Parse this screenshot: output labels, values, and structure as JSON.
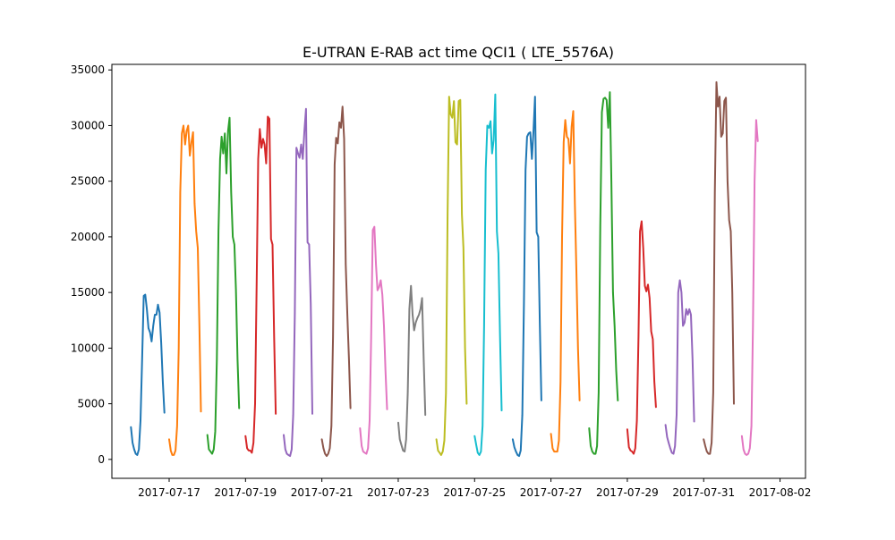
{
  "chart_data": {
    "type": "line",
    "title": "E-UTRAN E-RAB act time QCI1 ( LTE_5576A)",
    "xlabel": "",
    "ylabel": "",
    "x_start_date": "2017-07-16",
    "x_axis_type": "date",
    "xlim": [
      "2017-07-15T12:00",
      "2017-08-02T16:00"
    ],
    "ylim": [
      -1700,
      35500
    ],
    "grid": false,
    "x_tick_labels": [
      "2017-07-17",
      "2017-07-19",
      "2017-07-21",
      "2017-07-23",
      "2017-07-25",
      "2017-07-27",
      "2017-07-29",
      "2017-07-31",
      "2017-08-02"
    ],
    "y_tick_labels": [
      "0",
      "5000",
      "10000",
      "15000",
      "20000",
      "25000",
      "30000",
      "35000"
    ],
    "y_ticks": [
      0,
      5000,
      10000,
      15000,
      20000,
      25000,
      30000,
      35000
    ],
    "series": [
      {
        "color": "#1f77b4",
        "values": [
          2900,
          1500,
          900,
          500,
          400,
          900,
          3500,
          9000,
          14700,
          14800,
          13500,
          11800,
          11400,
          10600,
          12000,
          13000,
          13000,
          13900,
          13200,
          10500,
          7000,
          4200
        ]
      },
      {
        "color": "#ff7f0e",
        "values": [
          1800,
          800,
          400,
          400,
          800,
          3000,
          10000,
          24000,
          29300,
          30000,
          28300,
          29500,
          30000,
          27300,
          28500,
          29400,
          23000,
          20500,
          19000,
          12000,
          4300
        ]
      },
      {
        "color": "#2ca02c",
        "values": [
          2200,
          900,
          700,
          500,
          900,
          2500,
          9000,
          20500,
          27000,
          29000,
          27500,
          29300,
          25700,
          29500,
          30700,
          24000,
          20000,
          19300,
          15300,
          9000,
          4600
        ]
      },
      {
        "color": "#d62728",
        "values": [
          2100,
          1000,
          800,
          800,
          600,
          1500,
          5000,
          16000,
          27000,
          29700,
          28000,
          28800,
          28300,
          26600,
          30800,
          30600,
          19800,
          19300,
          11000,
          4100
        ]
      },
      {
        "color": "#9467bd",
        "values": [
          2200,
          900,
          500,
          400,
          300,
          900,
          4000,
          13000,
          28000,
          27500,
          27100,
          28300,
          27000,
          29500,
          31500,
          19500,
          19300,
          14000,
          4100
        ]
      },
      {
        "color": "#8c564b",
        "values": [
          1800,
          1000,
          500,
          300,
          500,
          1000,
          3000,
          11000,
          26500,
          28900,
          28400,
          30300,
          29800,
          31700,
          28800,
          17500,
          13000,
          9000,
          4600
        ]
      },
      {
        "color": "#e377c2",
        "values": [
          2800,
          1200,
          700,
          600,
          500,
          1000,
          3500,
          11000,
          20600,
          20900,
          17500,
          15200,
          15500,
          16100,
          14800,
          12000,
          8000,
          4500
        ]
      },
      {
        "color": "#7f7f7f",
        "values": [
          3300,
          1800,
          1300,
          800,
          700,
          1800,
          6000,
          13500,
          15600,
          13000,
          11600,
          12300,
          12700,
          13000,
          13500,
          14500,
          9000,
          4000
        ]
      },
      {
        "color": "#bcbd22",
        "values": [
          1800,
          800,
          600,
          400,
          700,
          1700,
          6000,
          22000,
          32600,
          31000,
          30700,
          32200,
          28500,
          28300,
          32200,
          32300,
          22000,
          19000,
          10000,
          5000
        ]
      },
      {
        "color": "#17becf",
        "values": [
          2100,
          1300,
          600,
          400,
          700,
          3000,
          12000,
          26000,
          30000,
          29800,
          30400,
          27500,
          28700,
          32800,
          20500,
          18500,
          11000,
          4400
        ]
      },
      {
        "color": "#1f77b4",
        "values": [
          1800,
          1100,
          700,
          400,
          300,
          800,
          4000,
          14000,
          26000,
          29000,
          29300,
          29400,
          27000,
          29400,
          32600,
          20400,
          20000,
          12000,
          5300
        ]
      },
      {
        "color": "#ff7f0e",
        "values": [
          2300,
          1000,
          700,
          700,
          700,
          1700,
          7000,
          20000,
          28500,
          30500,
          29000,
          28800,
          26600,
          29900,
          31300,
          23000,
          17000,
          10000,
          5300
        ]
      },
      {
        "color": "#2ca02c",
        "values": [
          2800,
          1200,
          700,
          500,
          500,
          1200,
          6000,
          21000,
          31200,
          32400,
          32500,
          32300,
          29800,
          33000,
          25000,
          15000,
          12000,
          8000,
          5300
        ]
      },
      {
        "color": "#d62728",
        "values": [
          2700,
          1100,
          800,
          700,
          500,
          1000,
          3500,
          11000,
          20500,
          21400,
          19000,
          15600,
          15100,
          15700,
          14500,
          11500,
          10800,
          7000,
          4700
        ]
      },
      {
        "color": "#9467bd",
        "values": [
          3100,
          2000,
          1500,
          1000,
          600,
          500,
          1200,
          4000,
          15000,
          16100,
          15000,
          12000,
          12300,
          13500,
          13000,
          13500,
          13000,
          9000,
          3400
        ]
      },
      {
        "color": "#8c564b",
        "values": [
          1800,
          1200,
          700,
          500,
          500,
          1500,
          6000,
          24000,
          33900,
          31700,
          32600,
          29000,
          29300,
          32200,
          32500,
          25000,
          21500,
          20500,
          15000,
          5000
        ]
      },
      {
        "color": "#e377c2",
        "values": [
          2100,
          900,
          500,
          400,
          500,
          1000,
          3000,
          12000,
          25000,
          30500,
          28600
        ]
      }
    ]
  }
}
